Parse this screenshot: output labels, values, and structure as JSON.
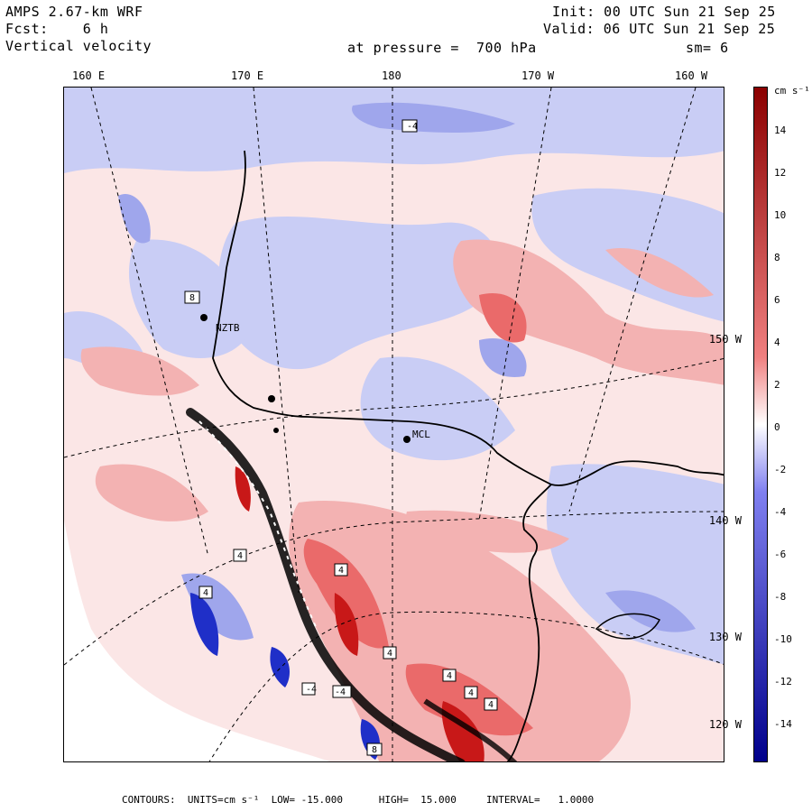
{
  "header": {
    "model": "AMPS 2.67-km WRF",
    "fcst": "Fcst:    6 h",
    "field": "Vertical velocity",
    "init": "Init: 00 UTC Sun 21 Sep 25",
    "valid": "Valid: 06 UTC Sun 21 Sep 25",
    "level": "at pressure =  700 hPa",
    "smooth": "sm= 6"
  },
  "axes": {
    "lon_labels": [
      "160 E",
      "170 E",
      "180",
      "170 W",
      "160 W"
    ],
    "lat_labels": [
      "150 W",
      "140 W",
      "130 W",
      "120 W"
    ]
  },
  "colorbar": {
    "units": "cm s⁻¹",
    "ticks": [
      "14",
      "12",
      "10",
      "8",
      "6",
      "4",
      "2",
      "0",
      "-2",
      "-4",
      "-6",
      "-8",
      "-10",
      "-12",
      "-14"
    ],
    "colors": {
      "strong_up": "#8b0000",
      "up": "#f08080",
      "neutral": "#ffffff",
      "down": "#8080f0",
      "strong_down": "#00008b"
    }
  },
  "stations": [
    "NZTB",
    "MCL"
  ],
  "map_labels": [
    "4",
    "-4",
    "-4",
    "4",
    "4",
    "4",
    "4",
    "4",
    "4",
    "-4",
    "8",
    "8"
  ],
  "footer": {
    "text": "CONTOURS:  UNITS=cm s⁻¹  LOW= -15.000      HIGH=  15.000     INTERVAL=   1.0000"
  }
}
